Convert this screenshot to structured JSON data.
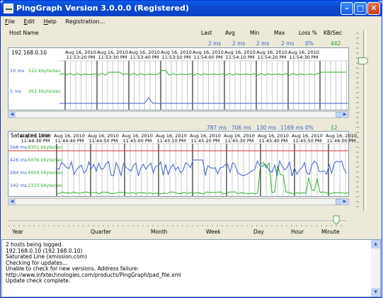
{
  "window": {
    "title": "PingGraph Version 3.0.0.0 (Registered)"
  },
  "menu": [
    {
      "u": "F",
      "rest": "ile"
    },
    {
      "u": "E",
      "rest": "dit"
    },
    {
      "u": "H",
      "rest": "elp"
    },
    {
      "u": "",
      "rest": "Registration..."
    }
  ],
  "columns": {
    "host": "Host Name",
    "last": "Last",
    "avg": "Avg",
    "min": "Min",
    "max": "Max",
    "loss": "Loss %",
    "kb": "KB/Sec"
  },
  "hosts": [
    {
      "name": "192.168.0.10",
      "last": "2 ms",
      "avg": "2 ms",
      "min": "2 ms",
      "max": "2 ms",
      "loss": "0%",
      "kb": "442",
      "y_labels": [
        {
          "ms": "10 ms",
          "kb": "522 kbyte/sec"
        },
        {
          "ms": "5 ms",
          "kb": "261 kbyte/sec"
        }
      ],
      "time_labels": [
        [
          "Aug 16, 2010",
          "11:53:20 PM"
        ],
        [
          "Aug 16, 2010",
          "11:53:30 PM"
        ],
        [
          "Aug 16, 2010",
          "11:53:40 PM"
        ],
        [
          "Aug 16, 2010",
          "11:53:50 PM"
        ],
        [
          "Aug 16, 2010",
          "11:54:00 PM"
        ],
        [
          "Aug 16, 2010",
          "11:54:10 PM"
        ],
        [
          "Aug 16, 2010",
          "11:54:20 PM"
        ],
        [
          "Aug 16, 2010",
          "11:54:30 PM"
        ]
      ]
    },
    {
      "name": "Saturated Line",
      "last": "787 ms",
      "avg": "706 ms",
      "min": "130 ms",
      "max": "1169 ms",
      "loss": "0%",
      "kb": "12",
      "y_labels": [
        {
          "ms": "568 ms",
          "kb": "8301 kbyte/sec"
        },
        {
          "ms": "426 ms",
          "kb": "6976 kbyte/sec"
        },
        {
          "ms": "284 ms",
          "kb": "4650 kbyte/sec"
        },
        {
          "ms": "142 ms",
          "kb": "2325 kbyte/sec"
        }
      ],
      "time_labels": [
        [
          "Aug 16, 2010",
          "11:44:30 PM"
        ],
        [
          "Aug 16, 2010",
          "11:44:40 PM"
        ],
        [
          "Aug 16, 2010",
          "11:44:50 PM"
        ],
        [
          "Aug 16, 2010",
          "11:45:00 PM"
        ],
        [
          "Aug 16, 2010",
          "11:45:10 PM"
        ],
        [
          "Aug 16, 2010",
          "11:45:20 PM"
        ],
        [
          "Aug 16, 2010",
          "11:45:30 PM"
        ],
        [
          "Aug 16, 2010",
          "11:45:40 PM"
        ],
        [
          "Aug 16, 2010",
          "11:45:50 PM"
        ],
        [
          "Aug 16, 2010",
          "11:46:00 PM"
        ]
      ]
    }
  ],
  "timescale": [
    "Year",
    "Quarter",
    "Month",
    "Week",
    "Day",
    "Hour",
    "Minute"
  ],
  "log": [
    "2 hosts being logged.",
    "192.168.0.10 (192.168.0.10)",
    "Saturated Line (xmission.com)",
    "Checking for updates...",
    "Unable to check for new versions. Address failure:",
    "http://www.infxtechnologies.com/products/PingGraph/pad_file.xml",
    "Update check complete."
  ],
  "colors": {
    "ping": "#3a5fcd",
    "throughput": "#2fb22f",
    "threshold": "#e03030",
    "title_bar": "#0a5ce6"
  }
}
